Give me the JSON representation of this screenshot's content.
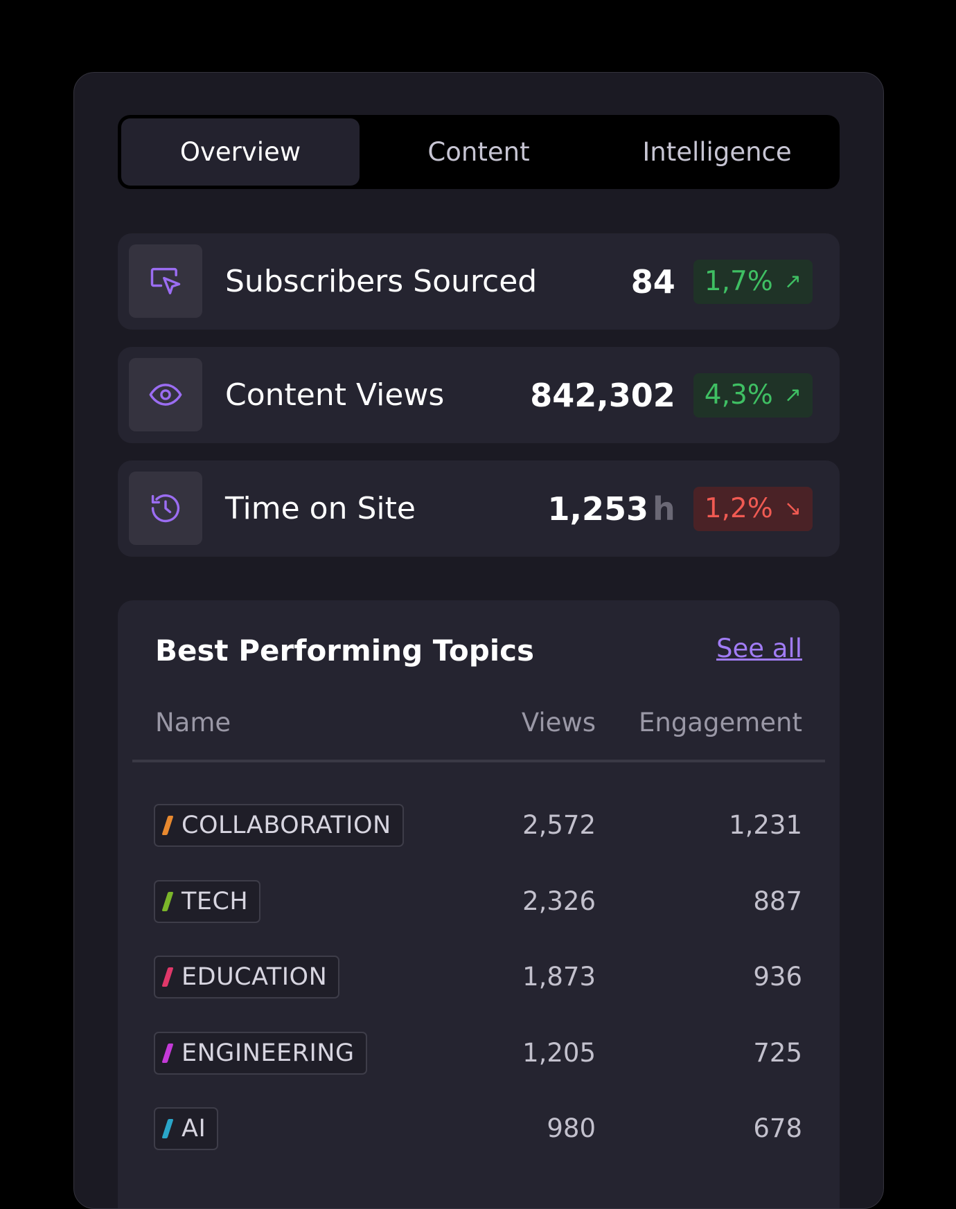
{
  "tabs": [
    {
      "label": "Overview",
      "active": true
    },
    {
      "label": "Content",
      "active": false
    },
    {
      "label": "Intelligence",
      "active": false
    }
  ],
  "stats": [
    {
      "icon": "cursor-click-icon",
      "label": "Subscribers Sourced",
      "value": "84",
      "unit": "",
      "change": "1,7%",
      "direction": "up",
      "arrow": "↗"
    },
    {
      "icon": "eye-icon",
      "label": "Content Views",
      "value": "842,302",
      "unit": "",
      "change": "4,3%",
      "direction": "up",
      "arrow": "↗"
    },
    {
      "icon": "clock-history-icon",
      "label": "Time on Site",
      "value": "1,253",
      "unit": "h",
      "change": "1,2%",
      "direction": "down",
      "arrow": "↘"
    }
  ],
  "topics": {
    "title": "Best Performing Topics",
    "see_all": "See all",
    "columns": {
      "name": "Name",
      "views": "Views",
      "engagement": "Engagement"
    },
    "rows": [
      {
        "name": "COLLABORATION",
        "color": "#e8892f",
        "views": "2,572",
        "engagement": "1,231"
      },
      {
        "name": "TECH",
        "color": "#7bb52a",
        "views": "2,326",
        "engagement": "887"
      },
      {
        "name": "EDUCATION",
        "color": "#e0386a",
        "views": "1,873",
        "engagement": "936"
      },
      {
        "name": "ENGINEERING",
        "color": "#c43ad8",
        "views": "1,205",
        "engagement": "725"
      },
      {
        "name": "AI",
        "color": "#2aa6c9",
        "views": "980",
        "engagement": "678"
      }
    ]
  },
  "colors": {
    "accent": "#a17cf5",
    "up": "#3fbf63",
    "down": "#f05a52"
  }
}
